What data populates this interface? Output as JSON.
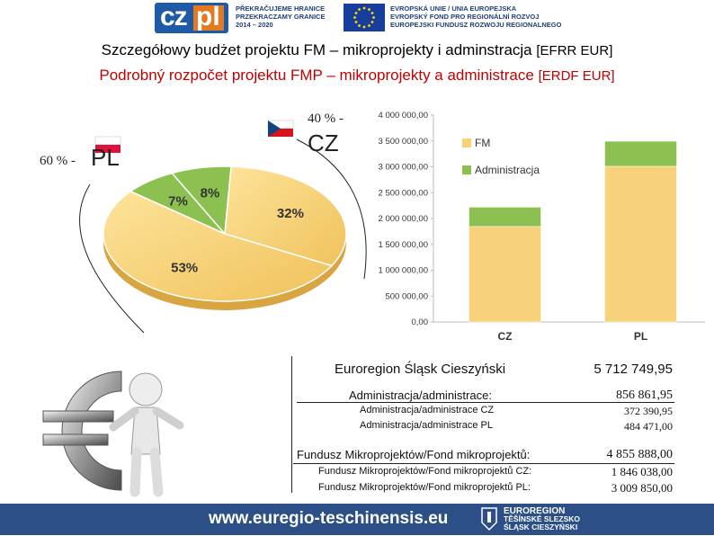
{
  "header": {
    "logo_cz": "cz",
    "logo_pl": "pl",
    "program_lines": [
      "PŘEKRAČUJEME HRANICE",
      "PRZEKRACZAMY GRANICE",
      "2014 – 2020"
    ],
    "eu_lines": [
      "EVROPSKÁ UNIE / UNIA EUROPEJSKA",
      "EVROPSKÝ FOND PRO REGIONÁLNÍ ROZVOJ",
      "EUROPEJSKI FUNDUSZ ROZWOJU REGIONALNEGO"
    ]
  },
  "title": {
    "pl_main": "Szczegółowy budżet projektu FM – mikroprojekty i adminstracja",
    "pl_unit": "[EFRR EUR]",
    "cz_main": "Podrobný rozpočet projektu FMP – mikroprojekty a administrace",
    "cz_unit": "[ERDF EUR]"
  },
  "labels": {
    "pl_pct": "60 % -",
    "pl_code": "PL",
    "cz_pct": "40 % -",
    "cz_code": "CZ"
  },
  "chart_data": [
    {
      "type": "pie",
      "labels": [
        "53%",
        "32%",
        "8%",
        "7%"
      ],
      "values": [
        53,
        32,
        8,
        7
      ],
      "colors": [
        "#f7d27a",
        "#f7d27a",
        "#8cc152",
        "#8cc152"
      ]
    },
    {
      "type": "bar",
      "stacked": true,
      "categories": [
        "CZ",
        "PL"
      ],
      "series": [
        {
          "name": "FM",
          "values": [
            1846038.0,
            3009850.0
          ],
          "color": "#f7d27a"
        },
        {
          "name": "Administracja",
          "values": [
            372390.95,
            484471.0
          ],
          "color": "#8cc152"
        }
      ],
      "ylim": [
        0,
        4000000
      ],
      "yticks": [
        "0,00",
        "500 000,00",
        "1 000 000,00",
        "1 500 000,00",
        "2 000 000,00",
        "2 500 000,00",
        "3 000 000,00",
        "3 500 000,00",
        "4 000 000,00"
      ],
      "legend": "top-right"
    }
  ],
  "table": {
    "org_label": "Euroregion Śląsk Cieszyński",
    "org_total": "5 712 749,95",
    "admin_label": "Administracja/administrace:",
    "admin_total": "856 861,95",
    "admin_cz_label": "Administracja/administrace CZ",
    "admin_cz_value": "372 390,95",
    "admin_pl_label": "Administracja/administrace PL",
    "admin_pl_value": "484 471,00",
    "fund_label": "Fundusz Mikroprojektów/Fond mikroprojektů:",
    "fund_total": "4 855 888,00",
    "fund_cz_label": "Fundusz Mikroprojektów/Fond mikroprojektů CZ:",
    "fund_cz_value": "1 846 038,00",
    "fund_pl_label": "Fundusz Mikroprojektów/Fond mikroprojektů PL:",
    "fund_pl_value": "3 009 850,00"
  },
  "footer": {
    "url": "www.euregio-teschinensis.eu",
    "org_lines": [
      "EUROREGION",
      "TĚŠÍNSKÉ SLEZSKO",
      "ŚLĄSK CIESZYŃSKI"
    ]
  }
}
